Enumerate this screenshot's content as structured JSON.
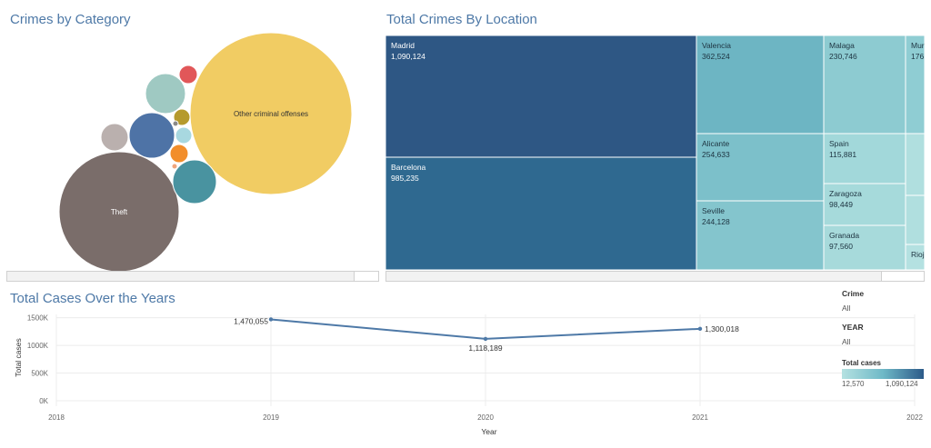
{
  "bubble": {
    "title": "Crimes by Category",
    "labels": [
      "Other criminal offenses",
      "Theft"
    ]
  },
  "treemap": {
    "title": "Total Crimes By Location"
  },
  "line": {
    "title": "Total Cases Over the Years"
  },
  "filters": {
    "crime_label": "Crime",
    "crime_value": "All",
    "year_label": "YEAR",
    "year_value": "All"
  },
  "legend": {
    "title": "Total cases",
    "min_label": "12,570",
    "max_label": "1,090,124",
    "colors": [
      "#b4e1e1",
      "#6fb9c7",
      "#2c5a89"
    ]
  },
  "chart_data": [
    {
      "type": "bubble",
      "title": "Crimes by Category",
      "bubbles": [
        {
          "label": "Other criminal offenses",
          "color": "#f1cc63"
        },
        {
          "label": "Theft",
          "color": "#7a6d6a"
        },
        {
          "label": "",
          "color": "#4993a0"
        },
        {
          "label": "",
          "color": "#4e73a6"
        },
        {
          "label": "",
          "color": "#9fc9c2"
        },
        {
          "label": "",
          "color": "#bab0ae"
        },
        {
          "label": "",
          "color": "#e15759"
        },
        {
          "label": "",
          "color": "#b59a2d"
        },
        {
          "label": "",
          "color": "#a8d8e0"
        },
        {
          "label": "",
          "color": "#f28e2b"
        },
        {
          "label": "",
          "color": "#f0a57c"
        },
        {
          "label": "",
          "color": "#8a8a8a"
        }
      ]
    },
    {
      "type": "treemap",
      "title": "Total Crimes By Location",
      "items": [
        {
          "label": "Madrid",
          "value": 1090124,
          "display": "1,090,124"
        },
        {
          "label": "Barcelona",
          "value": 985235,
          "display": "985,235"
        },
        {
          "label": "Valencia",
          "value": 362524,
          "display": "362,524"
        },
        {
          "label": "Alicante",
          "value": 254633,
          "display": "254,633"
        },
        {
          "label": "Seville",
          "value": 244128,
          "display": "244,128"
        },
        {
          "label": "Malaga",
          "value": 230746,
          "display": "230,746"
        },
        {
          "label": "Mur",
          "value": null,
          "display": "176"
        },
        {
          "label": "Spain",
          "value": 115881,
          "display": "115,881"
        },
        {
          "label": "Zaragoza",
          "value": 98449,
          "display": "98,449"
        },
        {
          "label": "Granada",
          "value": 97560,
          "display": "97,560"
        },
        {
          "label": "Rioj",
          "value": null,
          "display": ""
        }
      ]
    },
    {
      "type": "line",
      "title": "Total Cases Over the Years",
      "xlabel": "Year",
      "ylabel": "Total cases",
      "x_ticks": [
        "2018",
        "2019",
        "2020",
        "2021",
        "2022"
      ],
      "y_ticks": [
        "0K",
        "500K",
        "1000K",
        "1500K"
      ],
      "ylim": [
        0,
        1560000
      ],
      "xlim": [
        2018,
        2022
      ],
      "grid": true,
      "series": [
        {
          "x": [
            2019,
            2020,
            2021
          ],
          "values": [
            1470055,
            1118189,
            1300018
          ],
          "labels": [
            "1,470,055",
            "1,118,189",
            "1,300,018"
          ],
          "color": "#4e79a7"
        }
      ]
    }
  ]
}
